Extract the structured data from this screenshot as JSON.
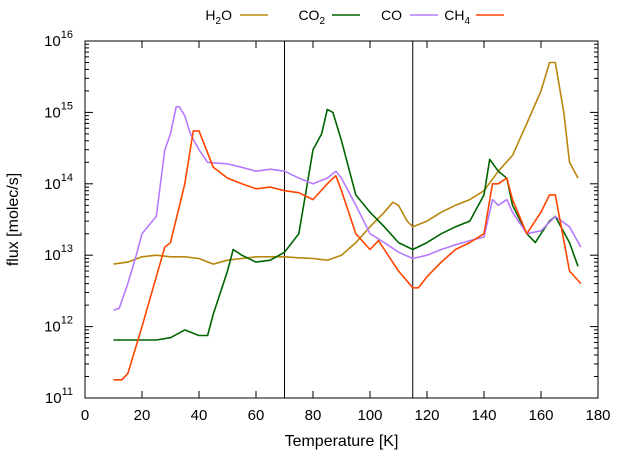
{
  "chart_data": {
    "type": "line",
    "xlabel": "Temperature [K]",
    "ylabel": "flux [molec/s]",
    "xlim": [
      0,
      180
    ],
    "ylim": [
      100000000000.0,
      1e+16
    ],
    "yscale": "log",
    "xticks": [
      "0",
      "20",
      "40",
      "60",
      "80",
      "100",
      "120",
      "140",
      "160",
      "180"
    ],
    "yticks": [
      {
        "base": "10",
        "exp": "11"
      },
      {
        "base": "10",
        "exp": "12"
      },
      {
        "base": "10",
        "exp": "13"
      },
      {
        "base": "10",
        "exp": "14"
      },
      {
        "base": "10",
        "exp": "15"
      },
      {
        "base": "10",
        "exp": "16"
      }
    ],
    "vlines": [
      70,
      115
    ],
    "legend_position": "top",
    "series": [
      {
        "name": "H2O",
        "label_main": "H",
        "label_sub": "2",
        "label_tail": "O",
        "color": "#b8860b",
        "x": [
          10,
          15,
          20,
          25,
          30,
          35,
          40,
          45,
          50,
          55,
          60,
          65,
          70,
          75,
          80,
          85,
          90,
          95,
          100,
          105,
          108,
          110,
          113,
          115,
          120,
          125,
          130,
          135,
          140,
          145,
          150,
          155,
          160,
          163,
          165,
          168,
          170,
          173
        ],
        "y": [
          7500000000000.0,
          8000000000000.0,
          9500000000000.0,
          10000000000000.0,
          9500000000000.0,
          9500000000000.0,
          9000000000000.0,
          7500000000000.0,
          8500000000000.0,
          9000000000000.0,
          9500000000000.0,
          9500000000000.0,
          9500000000000.0,
          9200000000000.0,
          9000000000000.0,
          8500000000000.0,
          10000000000000.0,
          15000000000000.0,
          25000000000000.0,
          40000000000000.0,
          55000000000000.0,
          50000000000000.0,
          30000000000000.0,
          25000000000000.0,
          30000000000000.0,
          40000000000000.0,
          50000000000000.0,
          60000000000000.0,
          80000000000000.0,
          150000000000000.0,
          250000000000000.0,
          700000000000000.0,
          2000000000000000.0,
          5000000000000000.0,
          5000000000000000.0,
          1000000000000000.0,
          200000000000000.0,
          120000000000000.0
        ]
      },
      {
        "name": "CO2",
        "label_main": "CO",
        "label_sub": "2",
        "label_tail": "",
        "color": "#006400",
        "x": [
          10,
          15,
          20,
          25,
          30,
          35,
          40,
          43,
          45,
          50,
          52,
          55,
          60,
          65,
          70,
          75,
          78,
          80,
          83,
          85,
          87,
          90,
          95,
          100,
          105,
          110,
          115,
          120,
          125,
          130,
          135,
          140,
          142,
          145,
          148,
          150,
          155,
          158,
          160,
          163,
          165,
          170,
          173
        ],
        "y": [
          650000000000.0,
          650000000000.0,
          650000000000.0,
          650000000000.0,
          700000000000.0,
          900000000000.0,
          750000000000.0,
          750000000000.0,
          1500000000000.0,
          6000000000000.0,
          12000000000000.0,
          10000000000000.0,
          8000000000000.0,
          8500000000000.0,
          11000000000000.0,
          20000000000000.0,
          100000000000000.0,
          300000000000000.0,
          500000000000000.0,
          1100000000000000.0,
          1000000000000000.0,
          400000000000000.0,
          70000000000000.0,
          40000000000000.0,
          25000000000000.0,
          15000000000000.0,
          12000000000000.0,
          15000000000000.0,
          20000000000000.0,
          25000000000000.0,
          30000000000000.0,
          70000000000000.0,
          220000000000000.0,
          150000000000000.0,
          120000000000000.0,
          50000000000000.0,
          20000000000000.0,
          15000000000000.0,
          20000000000000.0,
          30000000000000.0,
          35000000000000.0,
          15000000000000.0,
          7000000000000.0
        ]
      },
      {
        "name": "CO",
        "label_main": "CO",
        "label_sub": "",
        "label_tail": "",
        "color": "#b57bff",
        "x": [
          10,
          12,
          15,
          18,
          20,
          22,
          25,
          28,
          30,
          32,
          33,
          35,
          37,
          40,
          43,
          50,
          55,
          60,
          65,
          70,
          75,
          80,
          85,
          88,
          90,
          95,
          100,
          105,
          110,
          115,
          120,
          125,
          130,
          135,
          140,
          143,
          145,
          148,
          150,
          155,
          160,
          165,
          170,
          174
        ],
        "y": [
          1700000000000.0,
          1800000000000.0,
          4000000000000.0,
          10000000000000.0,
          20000000000000.0,
          25000000000000.0,
          35000000000000.0,
          300000000000000.0,
          500000000000000.0,
          1200000000000000.0,
          1200000000000000.0,
          900000000000000.0,
          500000000000000.0,
          300000000000000.0,
          200000000000000.0,
          190000000000000.0,
          170000000000000.0,
          150000000000000.0,
          160000000000000.0,
          150000000000000.0,
          120000000000000.0,
          100000000000000.0,
          120000000000000.0,
          150000000000000.0,
          120000000000000.0,
          50000000000000.0,
          20000000000000.0,
          15000000000000.0,
          11000000000000.0,
          9000000000000.0,
          10000000000000.0,
          12000000000000.0,
          14000000000000.0,
          16000000000000.0,
          18000000000000.0,
          60000000000000.0,
          50000000000000.0,
          60000000000000.0,
          40000000000000.0,
          20000000000000.0,
          22000000000000.0,
          35000000000000.0,
          25000000000000.0,
          13000000000000.0
        ]
      },
      {
        "name": "CH4",
        "label_main": "CH",
        "label_sub": "4",
        "label_tail": "",
        "color": "#ff4500",
        "x": [
          10,
          13,
          15,
          20,
          25,
          28,
          30,
          35,
          38,
          40,
          45,
          50,
          55,
          60,
          65,
          70,
          75,
          80,
          85,
          88,
          90,
          95,
          100,
          103,
          105,
          110,
          115,
          117,
          120,
          125,
          130,
          135,
          140,
          143,
          145,
          148,
          150,
          155,
          160,
          163,
          165,
          170,
          174
        ],
        "y": [
          180000000000.0,
          180000000000.0,
          220000000000.0,
          1000000000000.0,
          5000000000000.0,
          13000000000000.0,
          15000000000000.0,
          100000000000000.0,
          550000000000000.0,
          550000000000000.0,
          170000000000000.0,
          120000000000000.0,
          100000000000000.0,
          85000000000000.0,
          90000000000000.0,
          80000000000000.0,
          75000000000000.0,
          60000000000000.0,
          100000000000000.0,
          130000000000000.0,
          80000000000000.0,
          20000000000000.0,
          12000000000000.0,
          16000000000000.0,
          12000000000000.0,
          6000000000000.0,
          3500000000000.0,
          3500000000000.0,
          5000000000000.0,
          8000000000000.0,
          12000000000000.0,
          15000000000000.0,
          20000000000000.0,
          100000000000000.0,
          100000000000000.0,
          120000000000000.0,
          60000000000000.0,
          20000000000000.0,
          40000000000000.0,
          70000000000000.0,
          70000000000000.0,
          6000000000000.0,
          4000000000000.0
        ]
      }
    ]
  }
}
